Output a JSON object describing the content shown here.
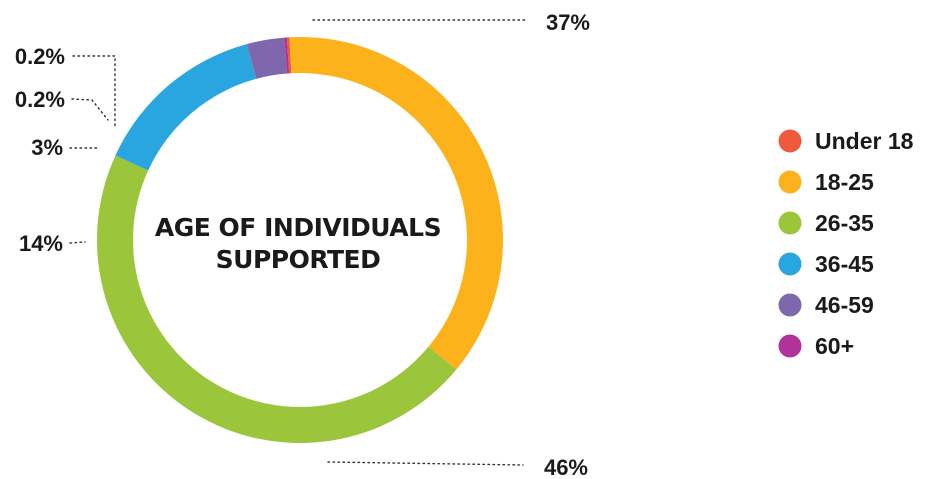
{
  "chart_data": {
    "type": "donut",
    "title": "AGE OF INDIVIDUALS SUPPORTED",
    "slices": [
      {
        "label": "Under 18",
        "value": 0.2,
        "display": "0.2%",
        "color": "#f05a3c"
      },
      {
        "label": "18-25",
        "value": 37,
        "display": "37%",
        "color": "#fbb21b"
      },
      {
        "label": "26-35",
        "value": 46,
        "display": "46%",
        "color": "#9bc63c"
      },
      {
        "label": "36-45",
        "value": 14,
        "display": "14%",
        "color": "#29a6df"
      },
      {
        "label": "46-59",
        "value": 3,
        "display": "3%",
        "color": "#7f67ad"
      },
      {
        "label": "60+",
        "value": 0.2,
        "display": "0.2%",
        "color": "#b0329a"
      }
    ],
    "legend_position": "right"
  }
}
